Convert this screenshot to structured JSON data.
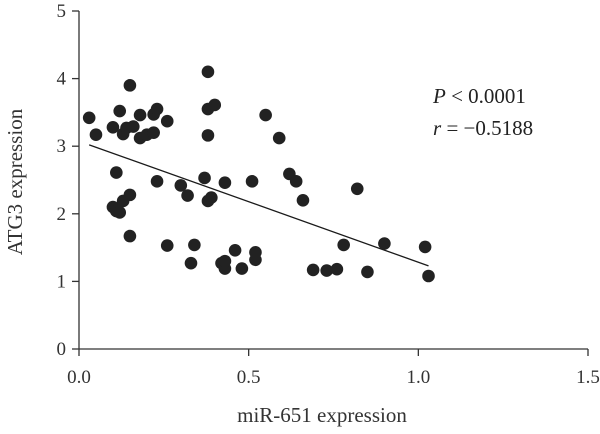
{
  "chart_data": {
    "type": "scatter",
    "xlabel": "miR-651 expression",
    "ylabel": "ATG3 expression",
    "xlim": [
      0.0,
      1.5
    ],
    "ylim": [
      0,
      5
    ],
    "xticks": [
      "0.0",
      "0.5",
      "1.0",
      "1.5"
    ],
    "yticks": [
      "0",
      "1",
      "2",
      "3",
      "4",
      "5"
    ],
    "annotations": {
      "p_symbol": "P",
      "p_text": " < 0.0001",
      "r_symbol": "r",
      "r_text": " = −0.5188"
    },
    "trendline": {
      "x": [
        0.03,
        1.03
      ],
      "y": [
        3.02,
        1.23
      ]
    },
    "grid": false,
    "points": [
      {
        "x": 0.03,
        "y": 3.42
      },
      {
        "x": 0.05,
        "y": 3.17
      },
      {
        "x": 0.1,
        "y": 3.28
      },
      {
        "x": 0.12,
        "y": 3.52
      },
      {
        "x": 0.13,
        "y": 3.18
      },
      {
        "x": 0.14,
        "y": 3.27
      },
      {
        "x": 0.15,
        "y": 3.9
      },
      {
        "x": 0.16,
        "y": 3.29
      },
      {
        "x": 0.18,
        "y": 3.46
      },
      {
        "x": 0.18,
        "y": 3.12
      },
      {
        "x": 0.2,
        "y": 3.17
      },
      {
        "x": 0.22,
        "y": 3.47
      },
      {
        "x": 0.23,
        "y": 3.55
      },
      {
        "x": 0.22,
        "y": 3.2
      },
      {
        "x": 0.26,
        "y": 3.37
      },
      {
        "x": 0.11,
        "y": 2.61
      },
      {
        "x": 0.1,
        "y": 2.1
      },
      {
        "x": 0.11,
        "y": 2.04
      },
      {
        "x": 0.12,
        "y": 2.02
      },
      {
        "x": 0.13,
        "y": 2.19
      },
      {
        "x": 0.15,
        "y": 2.28
      },
      {
        "x": 0.15,
        "y": 1.67
      },
      {
        "x": 0.23,
        "y": 2.48
      },
      {
        "x": 0.26,
        "y": 1.53
      },
      {
        "x": 0.3,
        "y": 2.42
      },
      {
        "x": 0.32,
        "y": 2.27
      },
      {
        "x": 0.33,
        "y": 1.27
      },
      {
        "x": 0.34,
        "y": 1.54
      },
      {
        "x": 0.37,
        "y": 2.53
      },
      {
        "x": 0.38,
        "y": 4.1
      },
      {
        "x": 0.38,
        "y": 3.55
      },
      {
        "x": 0.4,
        "y": 3.61
      },
      {
        "x": 0.38,
        "y": 3.16
      },
      {
        "x": 0.38,
        "y": 2.19
      },
      {
        "x": 0.39,
        "y": 2.24
      },
      {
        "x": 0.42,
        "y": 1.27
      },
      {
        "x": 0.43,
        "y": 1.19
      },
      {
        "x": 0.43,
        "y": 1.3
      },
      {
        "x": 0.43,
        "y": 2.46
      },
      {
        "x": 0.46,
        "y": 1.46
      },
      {
        "x": 0.48,
        "y": 1.19
      },
      {
        "x": 0.51,
        "y": 2.48
      },
      {
        "x": 0.52,
        "y": 1.43
      },
      {
        "x": 0.52,
        "y": 1.32
      },
      {
        "x": 0.55,
        "y": 3.46
      },
      {
        "x": 0.59,
        "y": 3.12
      },
      {
        "x": 0.62,
        "y": 2.59
      },
      {
        "x": 0.64,
        "y": 2.48
      },
      {
        "x": 0.66,
        "y": 2.2
      },
      {
        "x": 0.69,
        "y": 1.17
      },
      {
        "x": 0.73,
        "y": 1.16
      },
      {
        "x": 0.76,
        "y": 1.18
      },
      {
        "x": 0.78,
        "y": 1.54
      },
      {
        "x": 0.82,
        "y": 2.37
      },
      {
        "x": 0.85,
        "y": 1.14
      },
      {
        "x": 0.9,
        "y": 1.56
      },
      {
        "x": 1.02,
        "y": 1.51
      },
      {
        "x": 1.03,
        "y": 1.08
      }
    ]
  }
}
